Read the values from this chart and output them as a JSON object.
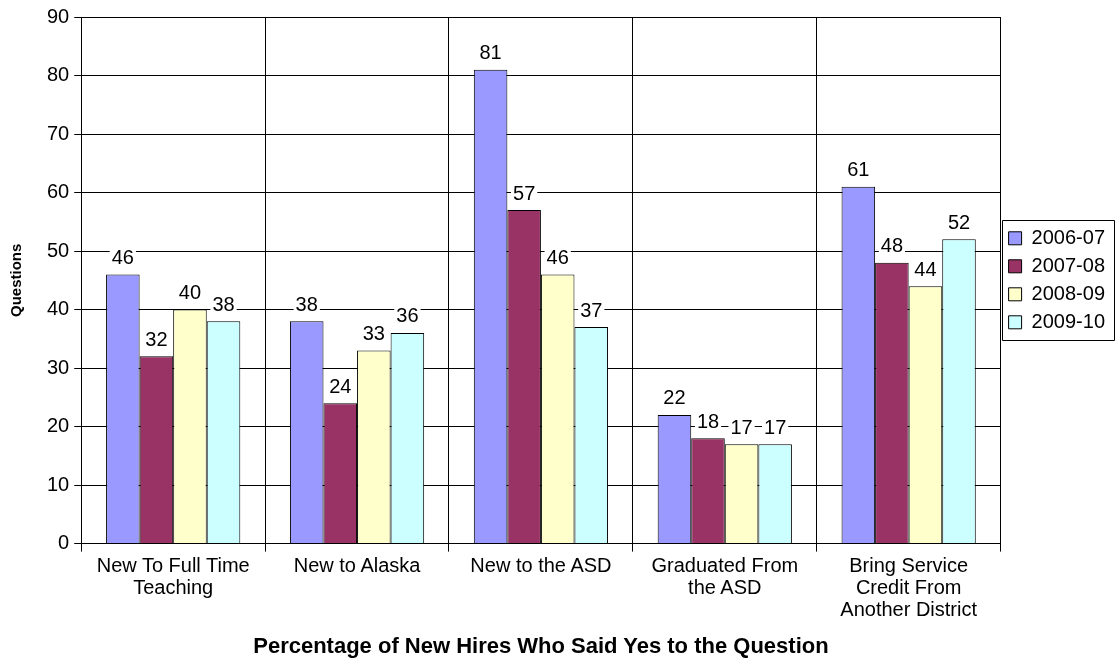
{
  "chart_data": {
    "type": "bar",
    "categories": [
      "New To Full Time Teaching",
      "New to Alaska",
      "New to the ASD",
      "Graduated From the ASD",
      "Bring Service Credit From Another District"
    ],
    "series": [
      {
        "name": "2006-07",
        "color": "#9999ff",
        "values": [
          46,
          38,
          81,
          22,
          61
        ]
      },
      {
        "name": "2007-08",
        "color": "#993366",
        "values": [
          32,
          24,
          57,
          18,
          48
        ]
      },
      {
        "name": "2008-09",
        "color": "#ffffcc",
        "values": [
          40,
          33,
          46,
          17,
          44
        ]
      },
      {
        "name": "2009-10",
        "color": "#ccffff",
        "values": [
          38,
          36,
          37,
          17,
          52
        ]
      }
    ],
    "xlabel": "Percentage of New Hires Who Said Yes to the Question",
    "ylabel": "Questions",
    "ylim": [
      0,
      90
    ],
    "yticks": [
      0,
      10,
      20,
      30,
      40,
      50,
      60,
      70,
      80,
      90
    ],
    "grid": true,
    "legend": "right",
    "data_labels": true
  }
}
